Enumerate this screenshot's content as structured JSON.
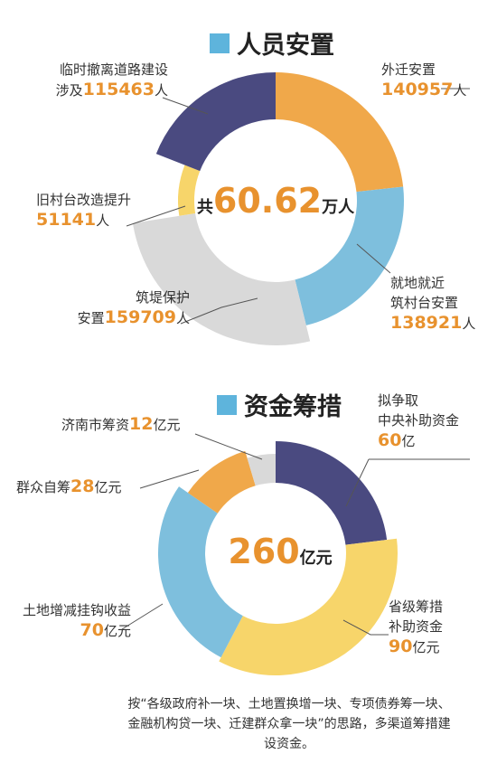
{
  "colors": {
    "navy": "#4a4a80",
    "orange": "#f0a84a",
    "blue": "#7ebfdd",
    "gray": "#d9d9d9",
    "yellow": "#f7d56a",
    "accent_text": "#e8922e",
    "title_square": "#5eb4dc"
  },
  "chart_data": [
    {
      "type": "pie",
      "title": "人员安置",
      "center": {
        "prefix": "共",
        "value": "60.62",
        "unit": "万人"
      },
      "unit": "人",
      "slices": [
        {
          "label": "外迁安置",
          "value": 140957,
          "value_text": "140957",
          "color": "#f0a84a"
        },
        {
          "label": "就地就近筑村台安置",
          "label_lines": [
            "就地就近",
            "筑村台安置"
          ],
          "value": 138921,
          "value_text": "138921",
          "color": "#7ebfdd"
        },
        {
          "label": "筑堤保护安置",
          "label_lines": [
            "筑堤保护",
            "安置"
          ],
          "value": 159709,
          "value_text": "159709",
          "color": "#d9d9d9"
        },
        {
          "label": "旧村台改造提升",
          "value": 51141,
          "value_text": "51141",
          "color": "#f7d56a"
        },
        {
          "label": "临时撤离道路建设涉及",
          "label_lines": [
            "临时撤离道路建设",
            "涉及"
          ],
          "value": 115463,
          "value_text": "115463",
          "color": "#4a4a80"
        }
      ]
    },
    {
      "type": "pie",
      "title": "资金筹措",
      "center": {
        "value": "260",
        "unit": "亿元"
      },
      "unit": "亿元",
      "slices": [
        {
          "label": "拟争取中央补助资金",
          "label_lines": [
            "拟争取",
            "中央补助资金"
          ],
          "value": 60,
          "value_text": "60",
          "unit": "亿",
          "color": "#4a4a80"
        },
        {
          "label": "省级筹措补助资金",
          "label_lines": [
            "省级筹措",
            "补助资金"
          ],
          "value": 90,
          "value_text": "90",
          "unit": "亿元",
          "color": "#f7d56a"
        },
        {
          "label": "土地增减挂钩收益",
          "value": 70,
          "value_text": "70",
          "unit": "亿元",
          "color": "#7ebfdd"
        },
        {
          "label": "群众自筹",
          "value": 28,
          "value_text": "28",
          "unit": "亿元",
          "color": "#f0a84a"
        },
        {
          "label": "济南市筹资",
          "value": 12,
          "value_text": "12",
          "unit": "亿元",
          "color": "#d9d9d9"
        }
      ]
    }
  ],
  "note": "按“各级政府补一块、土地置换增一块、专项债券筹一块、金融机构贷一块、迁建群众拿一块”的思路，多渠道筹措建设资金。"
}
